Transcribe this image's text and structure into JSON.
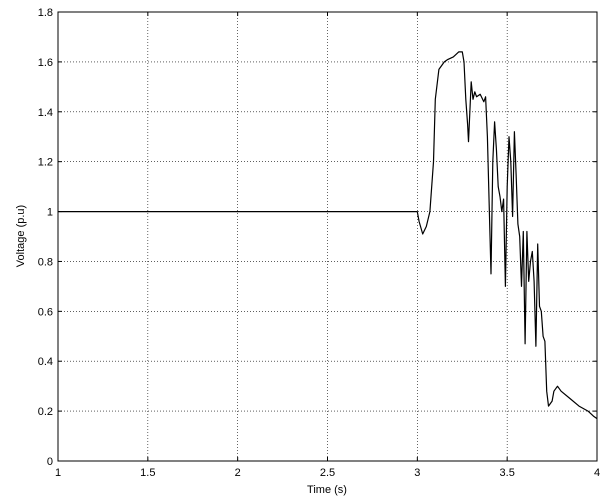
{
  "chart_data": {
    "type": "line",
    "title": "",
    "xlabel": "Time (s)",
    "ylabel": "Voltage (p.u)",
    "xlim": [
      1,
      4
    ],
    "ylim": [
      0,
      1.8
    ],
    "grid": true,
    "x_ticks": [
      1,
      1.5,
      2,
      2.5,
      3,
      3.5,
      4
    ],
    "x_tick_labels": [
      "1",
      "1.5",
      "2",
      "2.5",
      "3",
      "3.5",
      "4"
    ],
    "y_ticks": [
      0,
      0.2,
      0.4,
      0.6,
      0.8,
      1,
      1.2,
      1.4,
      1.6,
      1.8
    ],
    "y_tick_labels": [
      "0",
      "0.2",
      "0.4",
      "0.6",
      "0.8",
      "1",
      "1.2",
      "1.4",
      "1.6",
      "1.8"
    ],
    "colors": {
      "line": "#000000",
      "grid": "#000000",
      "background": "#ffffff"
    },
    "series": [
      {
        "x": [
          1.0,
          1.5,
          2.0,
          2.5,
          2.95,
          3.0,
          3.01,
          3.03,
          3.05,
          3.07,
          3.09,
          3.1,
          3.12,
          3.13,
          3.15,
          3.17,
          3.2,
          3.23,
          3.25,
          3.26,
          3.27,
          3.28,
          3.285,
          3.3,
          3.31,
          3.32,
          3.33,
          3.35,
          3.37,
          3.38,
          3.39,
          3.41,
          3.42,
          3.43,
          3.44,
          3.45,
          3.46,
          3.47,
          3.48,
          3.49,
          3.5,
          3.51,
          3.52,
          3.53,
          3.54,
          3.55,
          3.56,
          3.57,
          3.58,
          3.59,
          3.6,
          3.61,
          3.62,
          3.63,
          3.64,
          3.65,
          3.66,
          3.67,
          3.68,
          3.69,
          3.7,
          3.71,
          3.72,
          3.73,
          3.74,
          3.75,
          3.76,
          3.78,
          3.8,
          3.85,
          3.9,
          3.95,
          3.98,
          4.0
        ],
        "y": [
          1.0,
          1.0,
          1.0,
          1.0,
          1.0,
          1.0,
          0.96,
          0.91,
          0.94,
          1.0,
          1.2,
          1.45,
          1.57,
          1.58,
          1.6,
          1.61,
          1.62,
          1.64,
          1.64,
          1.6,
          1.45,
          1.35,
          1.28,
          1.52,
          1.45,
          1.48,
          1.46,
          1.47,
          1.44,
          1.46,
          1.3,
          0.75,
          1.2,
          1.36,
          1.25,
          1.1,
          1.06,
          1.0,
          1.05,
          0.7,
          1.1,
          1.3,
          1.2,
          0.98,
          1.32,
          1.15,
          0.95,
          0.9,
          0.7,
          0.92,
          0.47,
          0.92,
          0.72,
          0.8,
          0.84,
          0.72,
          0.46,
          0.87,
          0.62,
          0.6,
          0.5,
          0.48,
          0.28,
          0.22,
          0.23,
          0.24,
          0.28,
          0.3,
          0.28,
          0.25,
          0.22,
          0.2,
          0.18,
          0.17
        ]
      }
    ]
  }
}
